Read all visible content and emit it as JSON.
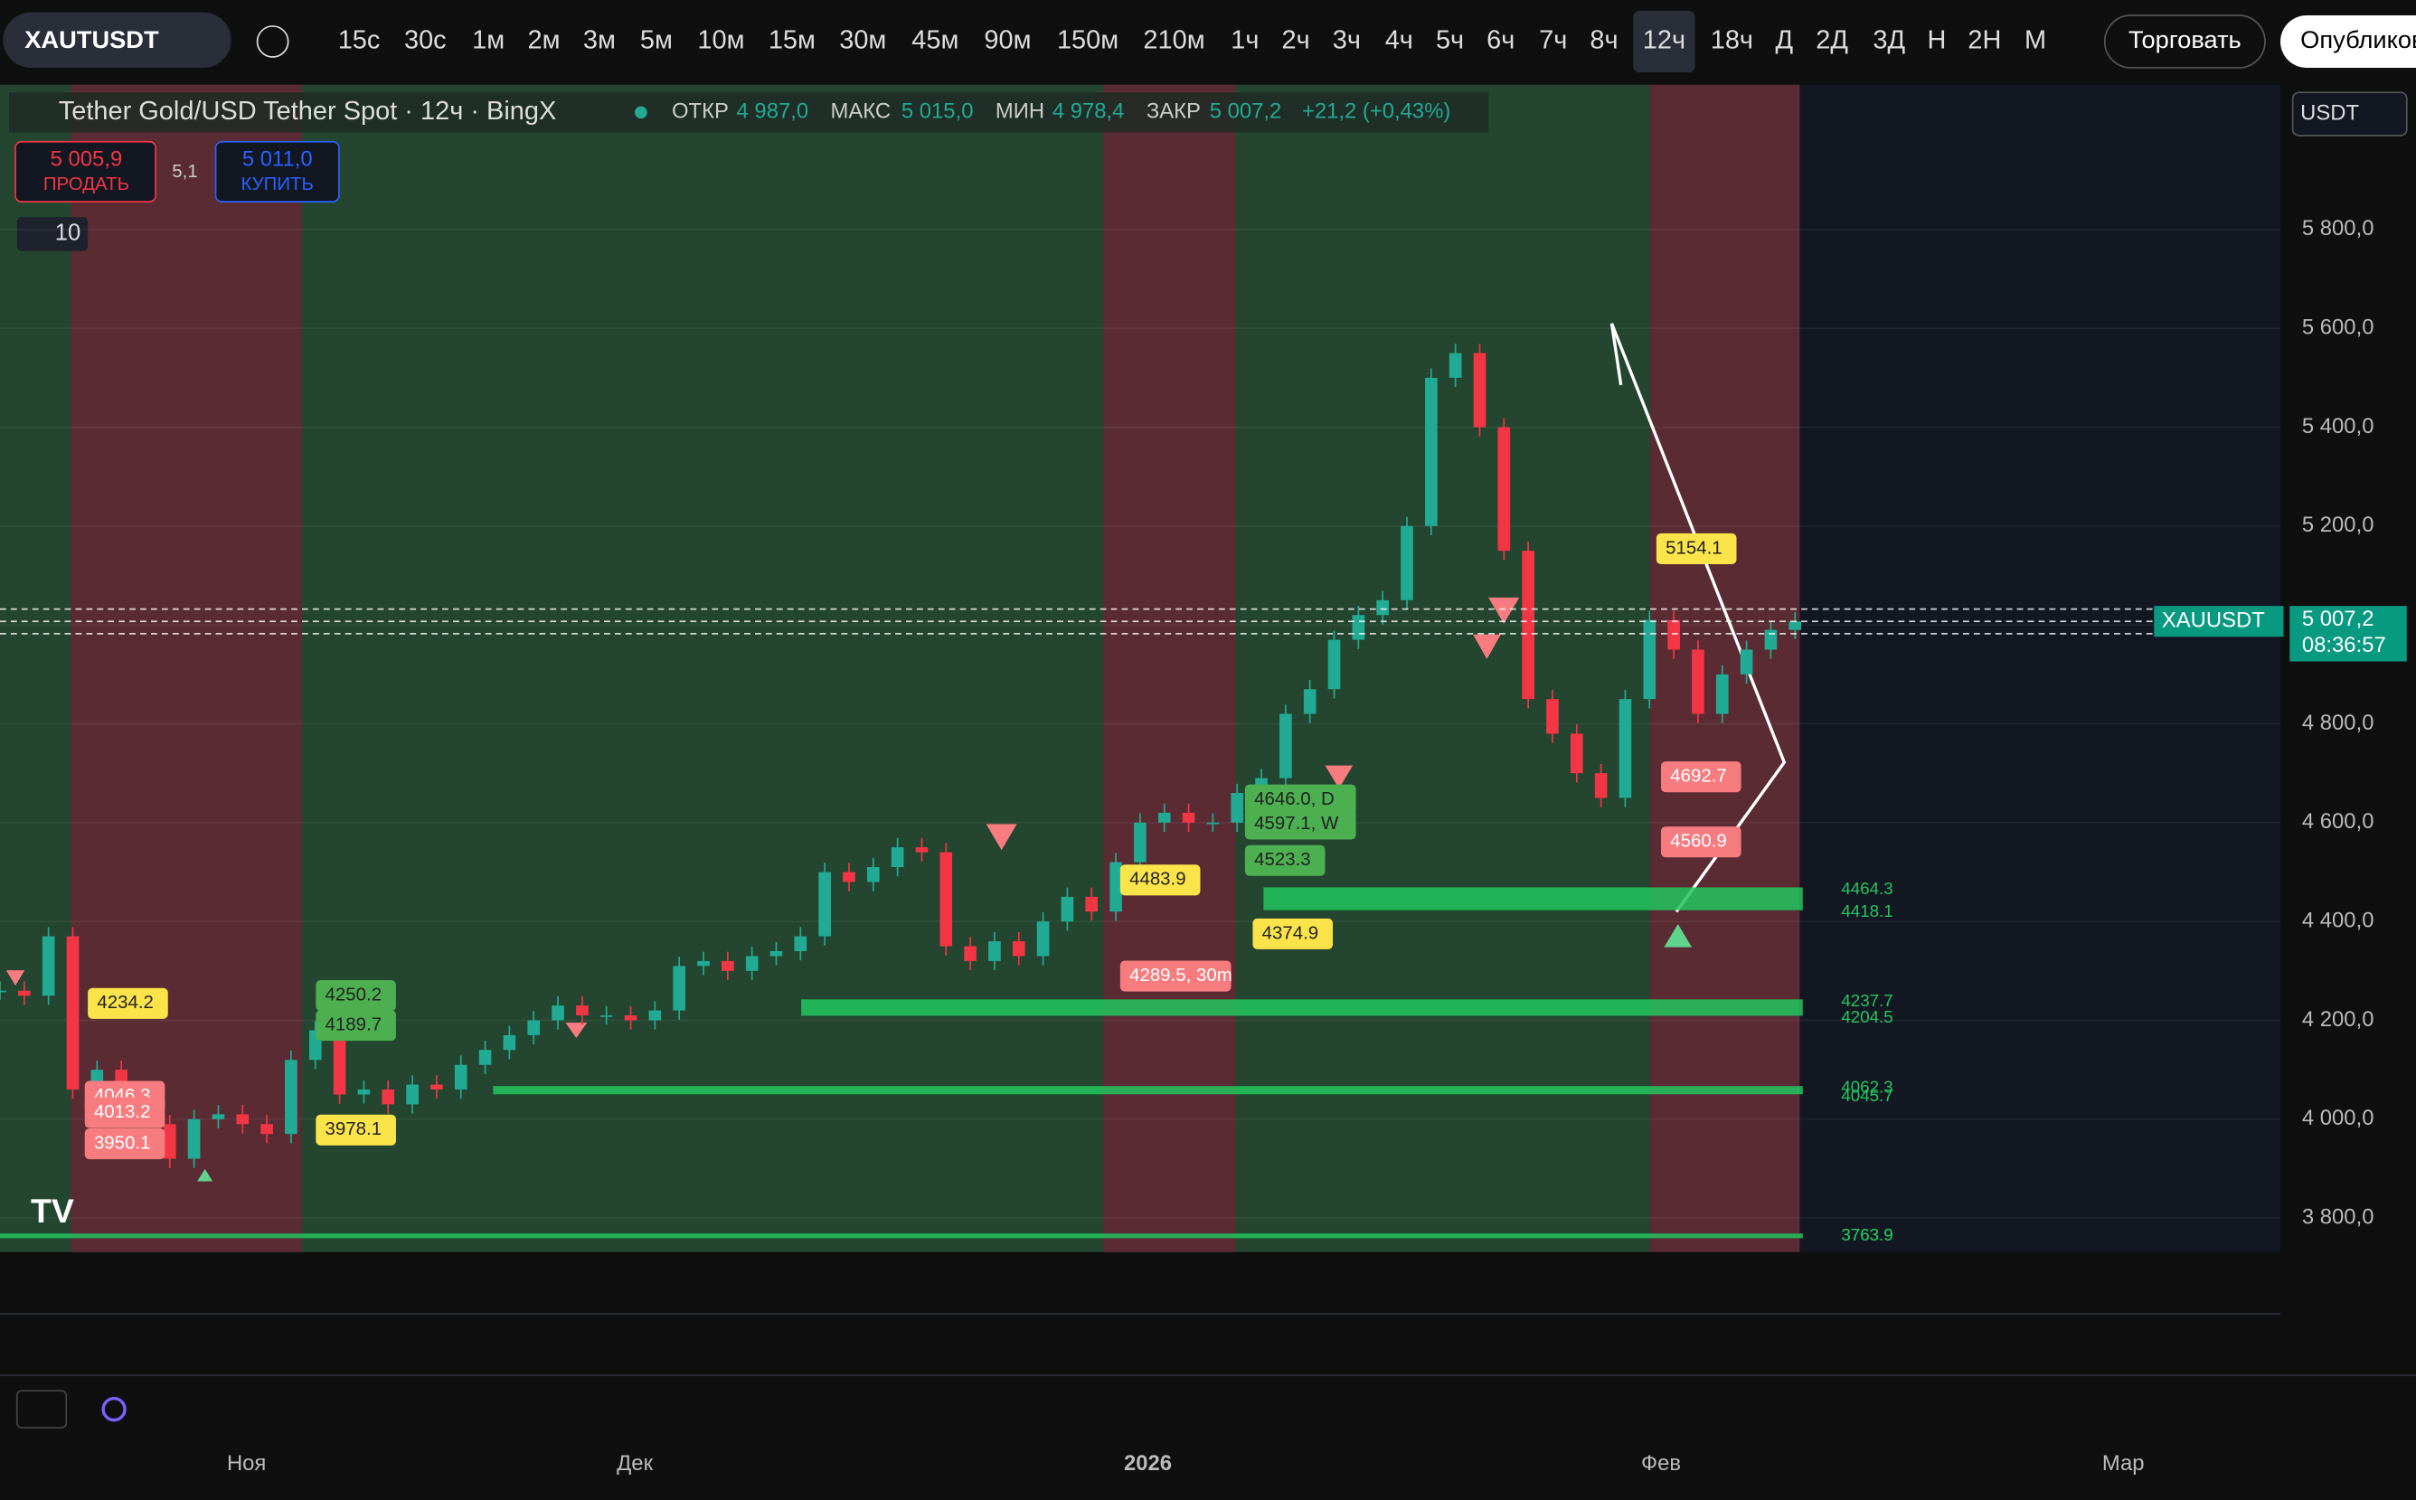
{
  "toolbar": {
    "symbol": "XAUTUSDT",
    "intervals": [
      "15с",
      "30с",
      "1м",
      "2м",
      "3м",
      "5м",
      "10м",
      "15м",
      "30м",
      "45м",
      "90м",
      "150м",
      "210м",
      "1ч",
      "2ч",
      "3ч",
      "4ч",
      "5ч",
      "6ч",
      "7ч",
      "8ч",
      "12ч",
      "18ч",
      "Д",
      "2Д",
      "3Д",
      "Н",
      "2Н",
      "М"
    ],
    "active": "12ч",
    "trade": "Торговать",
    "publish": "Опубликовать"
  },
  "legend": {
    "title": "Tether Gold/USD Tether Spot · 12ч · BingX",
    "open_label": "ОТКР",
    "open": "4 987,0",
    "high_label": "МАКС",
    "high": "5 015,0",
    "low_label": "МИН",
    "low": "4 978,4",
    "close_label": "ЗАКР",
    "close": "5 007,2",
    "change": "+21,2 (+0,43%)",
    "sell": "5 005,9",
    "sell_label": "ПРОДАТЬ",
    "spread": "5,1",
    "buy": "5 011,0",
    "buy_label": "КУПИТЬ",
    "indicators": "10",
    "currency": "USDT"
  },
  "chart_data": {
    "type": "candlestick",
    "ylim": [
      3731,
      6093
    ],
    "yticks": [
      {
        "value": 3800,
        "label": "3 800,0"
      },
      {
        "value": 4000,
        "label": "4 000,0"
      },
      {
        "value": 4200,
        "label": "4 200,0"
      },
      {
        "value": 4400,
        "label": "4 400,0"
      },
      {
        "value": 4600,
        "label": "4 600,0"
      },
      {
        "value": 4800,
        "label": "4 800,0"
      },
      {
        "value": 5000,
        "label": "5 000,0"
      },
      {
        "value": 5200,
        "label": "5 200,0"
      },
      {
        "value": 5400,
        "label": "5 400,0"
      },
      {
        "value": 5600,
        "label": "5 600,0"
      },
      {
        "value": 5800,
        "label": "5 800,0"
      }
    ],
    "x_labels": [
      "Ноя",
      "Дек",
      "2026",
      "Фев",
      "Мар"
    ],
    "closes": [
      4260,
      4250,
      4370,
      4060,
      4100,
      4020,
      3990,
      3920,
      4000,
      4010,
      3990,
      3970,
      4120,
      4180,
      4050,
      4060,
      4030,
      4070,
      4060,
      4110,
      4140,
      4170,
      4200,
      4230,
      4210,
      4210,
      4200,
      4220,
      4310,
      4320,
      4300,
      4330,
      4340,
      4370,
      4500,
      4480,
      4510,
      4550,
      4540,
      4350,
      4320,
      4360,
      4330,
      4400,
      4450,
      4420,
      4520,
      4600,
      4620,
      4600,
      4600,
      4660,
      4690,
      4820,
      4870,
      4970,
      5020,
      5050,
      5200,
      5500,
      5550,
      5400,
      5150,
      4850,
      4780,
      4700,
      4650,
      4850,
      5010,
      4950,
      4820,
      4900,
      4950,
      4990,
      5007.2
    ],
    "up_color": "#22ab94",
    "down_color": "#f23645",
    "price_labels": [
      4234.2,
      4250.2,
      4189.7,
      4046.3,
      4013.2,
      3950.1,
      3978.1,
      4483.9,
      4374.9,
      {
        "value": 4289.5,
        "label": "4289.5, 30m"
      },
      {
        "value": 4646.0,
        "label": "4646.0, D"
      },
      {
        "value": 4597.1,
        "label": "4597.1, W"
      },
      4523.3,
      5154.1,
      4692.7,
      4560.9
    ],
    "zones": [
      [
        4464.3,
        4418.1
      ],
      [
        4237.7,
        4204.5
      ],
      [
        4062.3,
        4045.7
      ],
      [
        3763.9,
        3763.9
      ]
    ],
    "last_price": {
      "value": 5007.2,
      "label": "5 007,2",
      "symbol": "XAUUSDT",
      "countdown": "08:36:57"
    }
  }
}
